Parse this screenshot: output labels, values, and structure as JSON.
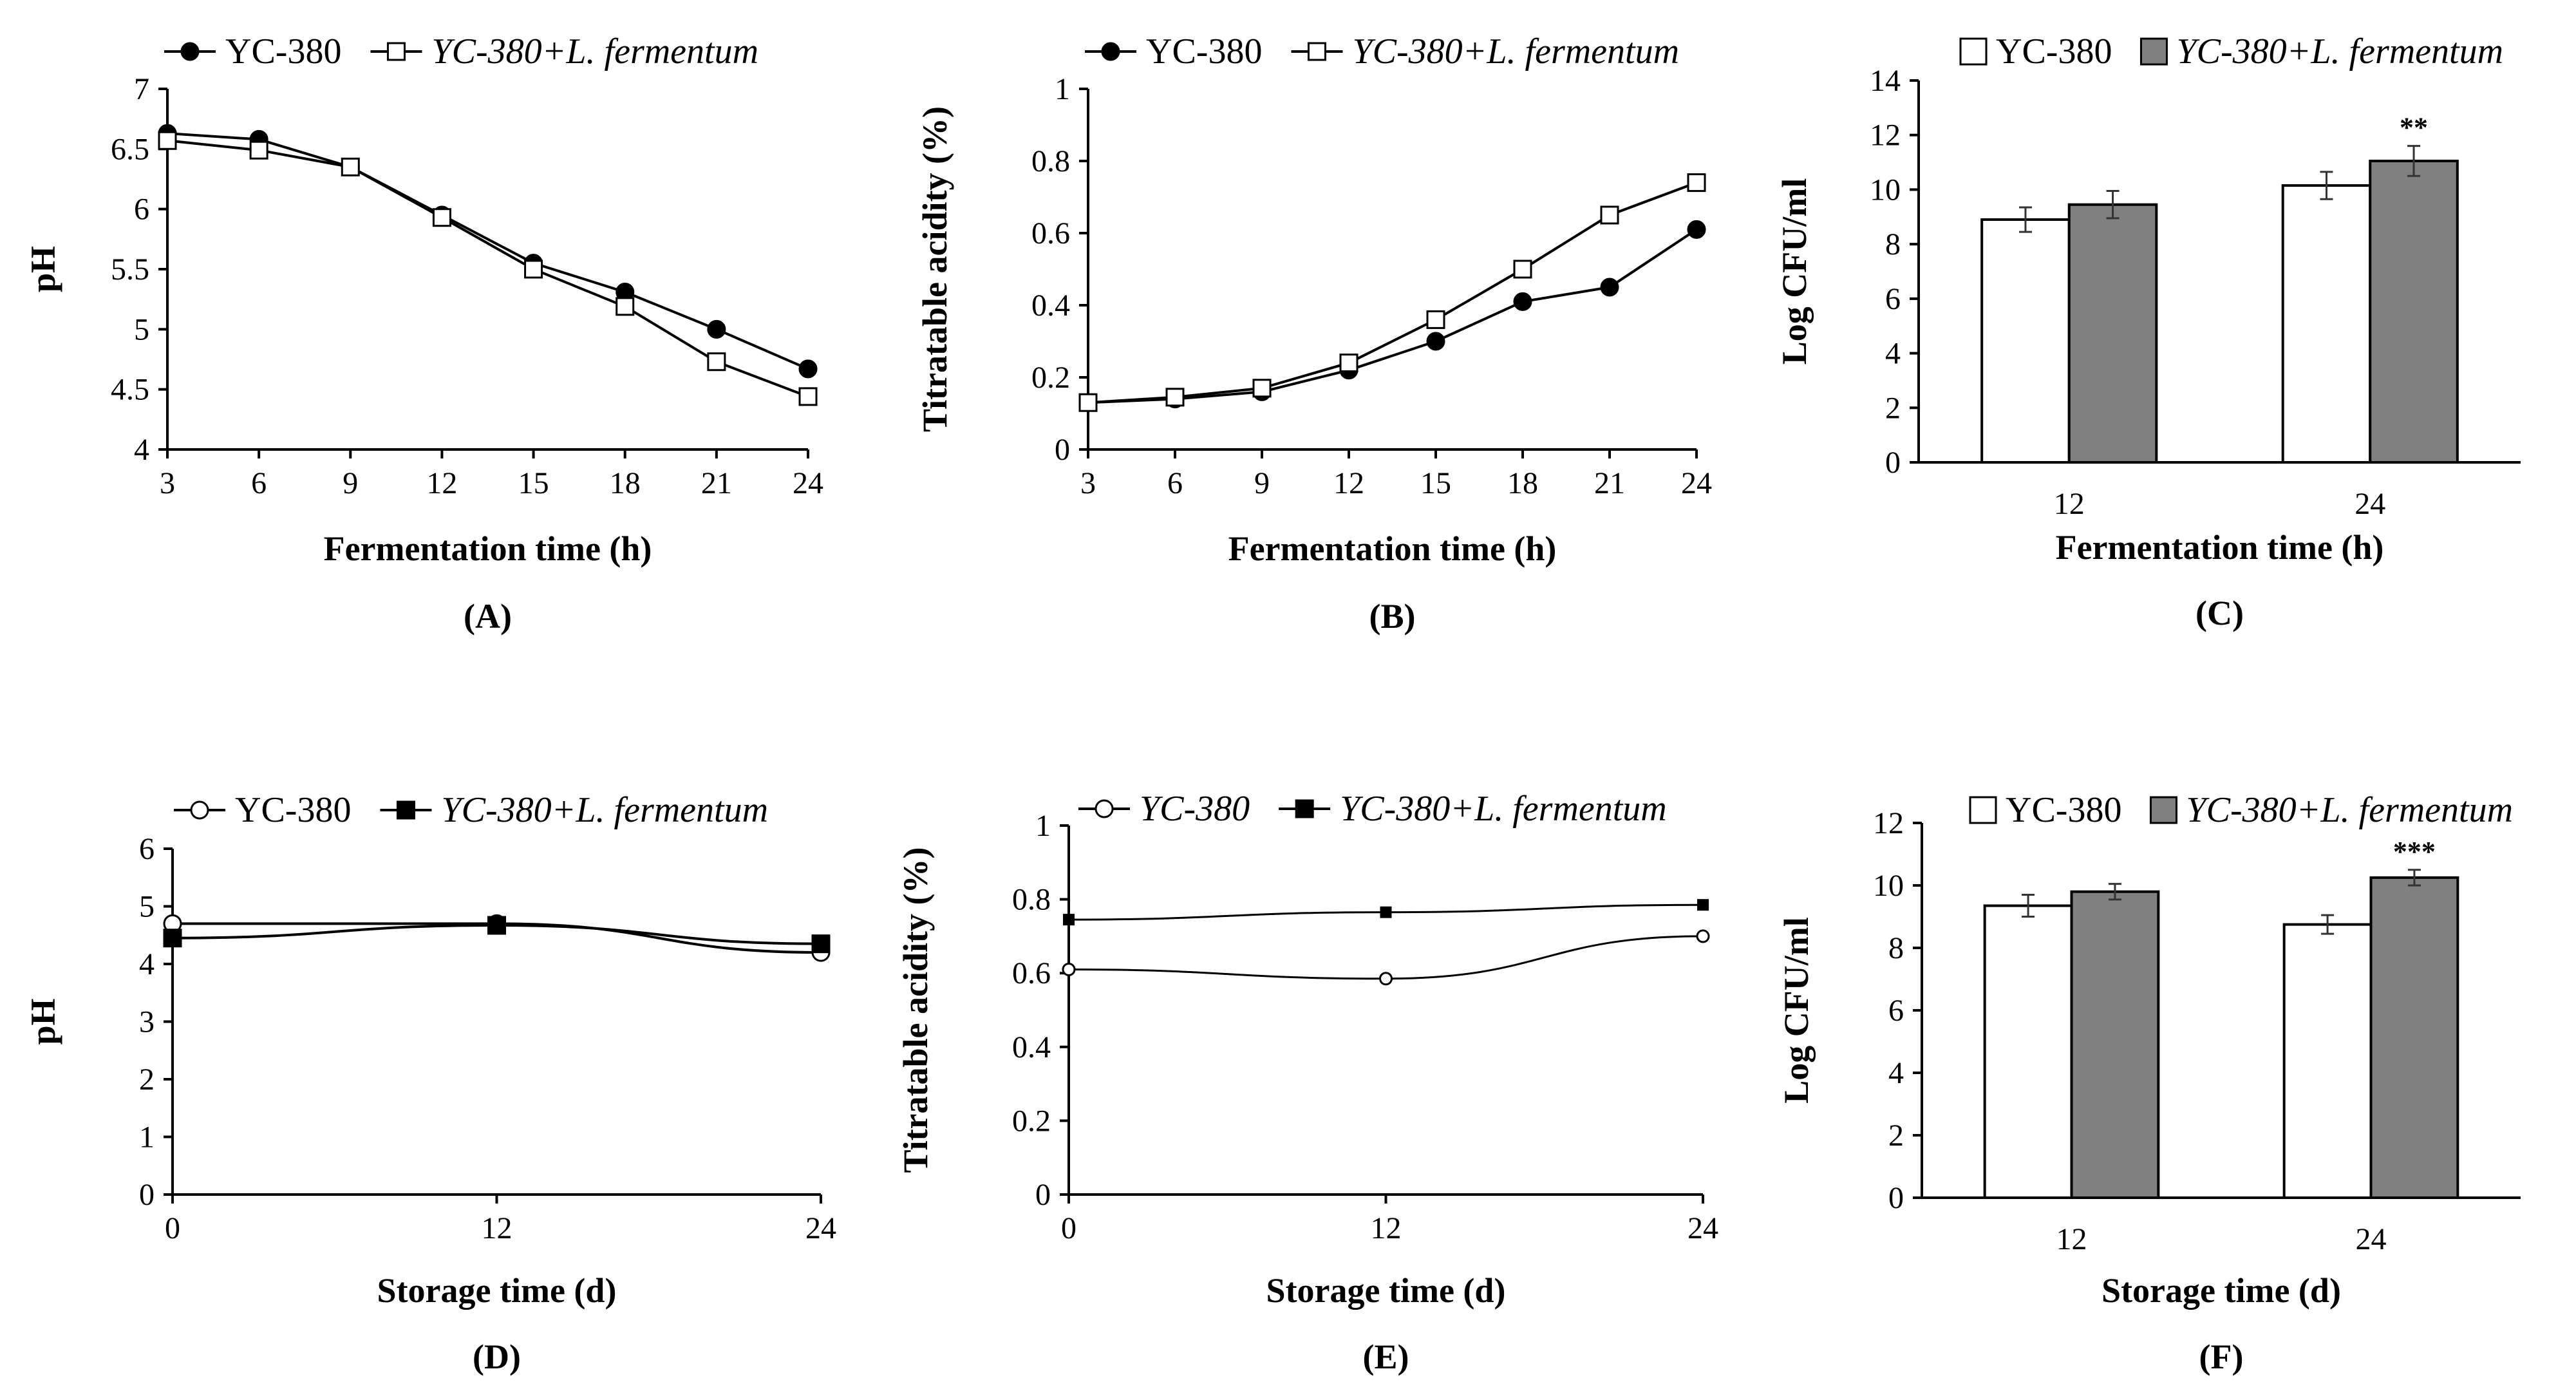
{
  "figure_title": "Fermentation and storage characteristics",
  "chart_data": [
    {
      "panel": "A",
      "panel_label": "(A)",
      "type": "line",
      "xlabel": "Fermentation time (h)",
      "ylabel": "pH",
      "x": [
        3,
        6,
        9,
        12,
        15,
        18,
        21,
        24
      ],
      "xlim": [
        3,
        24
      ],
      "ylim": [
        4,
        7
      ],
      "xticks": [
        "3",
        "6",
        "9",
        "12",
        "15",
        "18",
        "21",
        "24"
      ],
      "yticks": [
        "4",
        "4.5",
        "5",
        "5.5",
        "6",
        "6.5",
        "7"
      ],
      "series": [
        {
          "name": "YC-380",
          "italic": false,
          "marker": "filled-circle",
          "values": [
            6.63,
            6.58,
            6.35,
            5.95,
            5.55,
            5.31,
            5.0,
            4.67
          ]
        },
        {
          "name": "YC-380+L. fermentum",
          "italic": true,
          "marker": "open-square",
          "values": [
            6.57,
            6.49,
            6.35,
            5.93,
            5.5,
            5.19,
            4.73,
            4.44
          ]
        }
      ]
    },
    {
      "panel": "B",
      "panel_label": "(B)",
      "type": "line",
      "xlabel": "Fermentation time (h)",
      "ylabel": "Titratable acidity (%)",
      "x": [
        3,
        6,
        9,
        12,
        15,
        18,
        21,
        24
      ],
      "xlim": [
        3,
        24
      ],
      "ylim": [
        0,
        1
      ],
      "xticks": [
        "3",
        "6",
        "9",
        "12",
        "15",
        "18",
        "21",
        "24"
      ],
      "yticks": [
        "0",
        "0.2",
        "0.4",
        "0.6",
        "0.8",
        "1"
      ],
      "series": [
        {
          "name": "YC-380",
          "italic": false,
          "marker": "filled-circle",
          "values": [
            0.13,
            0.14,
            0.16,
            0.22,
            0.3,
            0.41,
            0.45,
            0.61
          ]
        },
        {
          "name": "YC-380+L. fermentum",
          "italic": true,
          "marker": "open-square",
          "values": [
            0.13,
            0.145,
            0.17,
            0.24,
            0.36,
            0.5,
            0.65,
            0.74
          ]
        }
      ]
    },
    {
      "panel": "C",
      "panel_label": "(C)",
      "type": "bar",
      "xlabel": "Fermentation time (h)",
      "ylabel": "Log CFU/ml",
      "categories": [
        "12",
        "24"
      ],
      "ylim": [
        0,
        14
      ],
      "yticks": [
        "0",
        "2",
        "4",
        "6",
        "8",
        "10",
        "12",
        "14"
      ],
      "series": [
        {
          "name": "YC-380",
          "italic": false,
          "fill": "#ffffff",
          "values": [
            8.9,
            10.15
          ],
          "errors": [
            0.45,
            0.5
          ]
        },
        {
          "name": "YC-380+L. fermentum",
          "italic": true,
          "fill": "#808080",
          "values": [
            9.45,
            11.05
          ],
          "errors": [
            0.5,
            0.55
          ]
        }
      ],
      "annotations": [
        {
          "category": "24",
          "series": 1,
          "text": "**"
        }
      ]
    },
    {
      "panel": "D",
      "panel_label": "(D)",
      "type": "line",
      "xlabel": "Storage time (d)",
      "ylabel": "pH",
      "x": [
        0,
        12,
        24
      ],
      "xlim": [
        0,
        24
      ],
      "ylim": [
        0,
        6
      ],
      "xticks": [
        "0",
        "12",
        "24"
      ],
      "yticks": [
        "0",
        "1",
        "2",
        "3",
        "4",
        "5",
        "6"
      ],
      "series": [
        {
          "name": "YC-380",
          "italic": false,
          "marker": "open-circle",
          "values": [
            4.7,
            4.7,
            4.2
          ]
        },
        {
          "name": "YC-380+L. fermentum",
          "italic": true,
          "marker": "filled-square",
          "values": [
            4.45,
            4.67,
            4.35
          ]
        }
      ]
    },
    {
      "panel": "E",
      "panel_label": "(E)",
      "type": "line",
      "xlabel": "Storage time (d)",
      "ylabel": "Titratable acidity (%)",
      "x": [
        0,
        12,
        24
      ],
      "xlim": [
        0,
        24
      ],
      "ylim": [
        0,
        1
      ],
      "xticks": [
        "0",
        "12",
        "24"
      ],
      "yticks": [
        "0",
        "0.2",
        "0.4",
        "0.6",
        "0.8",
        "1"
      ],
      "series": [
        {
          "name": "YC-380",
          "italic": true,
          "marker": "open-circle",
          "values": [
            0.61,
            0.585,
            0.7
          ]
        },
        {
          "name": "YC-380+L. fermentum",
          "italic": true,
          "marker": "filled-square",
          "values": [
            0.745,
            0.765,
            0.785
          ]
        }
      ]
    },
    {
      "panel": "F",
      "panel_label": "(F)",
      "type": "bar",
      "xlabel": "Storage time (d)",
      "ylabel": "Log CFU/ml",
      "categories": [
        "12",
        "24"
      ],
      "ylim": [
        0,
        12
      ],
      "yticks": [
        "0",
        "2",
        "4",
        "6",
        "8",
        "10",
        "12"
      ],
      "series": [
        {
          "name": "YC-380",
          "italic": false,
          "fill": "#ffffff",
          "values": [
            9.35,
            8.75
          ],
          "errors": [
            0.35,
            0.3
          ]
        },
        {
          "name": "YC-380+L. fermentum",
          "italic": true,
          "fill": "#808080",
          "values": [
            9.8,
            10.25
          ],
          "errors": [
            0.25,
            0.25
          ]
        }
      ],
      "annotations": [
        {
          "category": "24",
          "series": 1,
          "text": "***"
        }
      ]
    }
  ]
}
